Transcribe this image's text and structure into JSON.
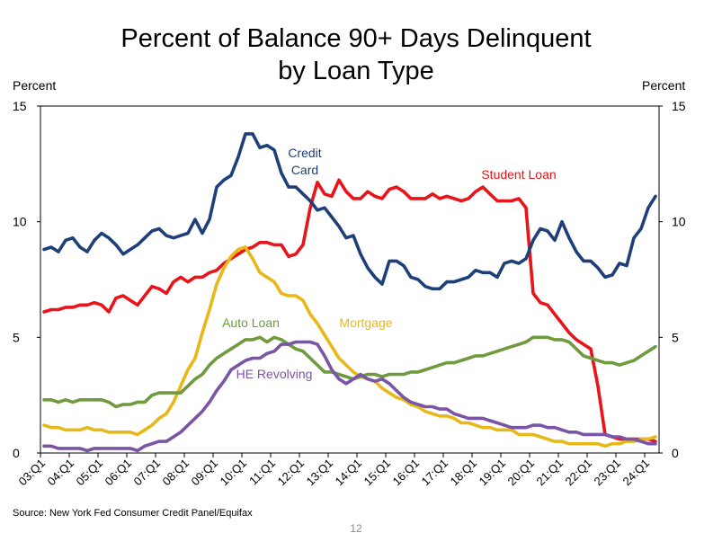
{
  "title_line1": "Percent of Balance 90+ Days Delinquent",
  "title_line2": "by Loan Type",
  "left_unit": "Percent",
  "right_unit": "Percent",
  "source": "Source: New York Fed Consumer Credit Panel/Equifax",
  "page_number": "12",
  "chart_data": {
    "type": "line",
    "title": "Percent of Balance 90+ Days Delinquent by Loan Type",
    "xlabel": "",
    "ylabel": "Percent",
    "ylim": [
      0,
      15
    ],
    "yticks": [
      0,
      5,
      10,
      15
    ],
    "grid": false,
    "x_start": "2003Q1",
    "x_end": "2024Q2",
    "x_count": 86,
    "xtick_labels": [
      "03:Q1",
      "04:Q1",
      "05:Q1",
      "06:Q1",
      "07:Q1",
      "08:Q1",
      "09:Q1",
      "10:Q1",
      "11:Q1",
      "12:Q1",
      "13:Q1",
      "14:Q1",
      "15:Q1",
      "16:Q1",
      "17:Q1",
      "18:Q1",
      "19:Q1",
      "20:Q1",
      "21:Q1",
      "22:Q1",
      "23:Q1",
      "24:Q1"
    ],
    "series": [
      {
        "name": "Credit Card",
        "label_lines": [
          "Credit",
          "Card"
        ],
        "color": "#1f3f7a",
        "values": [
          8.8,
          8.9,
          8.7,
          9.2,
          9.3,
          8.9,
          8.7,
          9.2,
          9.5,
          9.3,
          9.0,
          8.6,
          8.8,
          9.0,
          9.3,
          9.6,
          9.7,
          9.4,
          9.3,
          9.4,
          9.5,
          10.1,
          9.5,
          10.1,
          11.5,
          11.8,
          12.0,
          12.8,
          13.8,
          13.8,
          13.2,
          13.3,
          13.1,
          12.1,
          11.5,
          11.5,
          11.2,
          10.9,
          10.5,
          10.6,
          10.2,
          9.8,
          9.3,
          9.4,
          8.6,
          8.0,
          7.6,
          7.3,
          8.3,
          8.3,
          8.1,
          7.6,
          7.5,
          7.2,
          7.1,
          7.1,
          7.4,
          7.4,
          7.5,
          7.6,
          7.9,
          7.8,
          7.8,
          7.6,
          8.2,
          8.3,
          8.2,
          8.4,
          9.2,
          9.7,
          9.6,
          9.2,
          10.0,
          9.3,
          8.7,
          8.3,
          8.3,
          8.0,
          7.6,
          7.7,
          8.2,
          8.1,
          9.3,
          9.7,
          10.6,
          11.1
        ]
      },
      {
        "name": "Student Loan",
        "label_lines": [
          "Student Loan"
        ],
        "color": "#e8141a",
        "values": [
          6.1,
          6.2,
          6.2,
          6.3,
          6.3,
          6.4,
          6.4,
          6.5,
          6.4,
          6.1,
          6.7,
          6.8,
          6.6,
          6.4,
          6.8,
          7.2,
          7.1,
          6.9,
          7.4,
          7.6,
          7.4,
          7.6,
          7.6,
          7.8,
          7.9,
          8.2,
          8.4,
          8.6,
          8.8,
          8.9,
          9.1,
          9.1,
          9.0,
          9.0,
          8.5,
          8.6,
          9.0,
          10.6,
          11.7,
          11.2,
          11.1,
          11.8,
          11.3,
          11.0,
          11.0,
          11.3,
          11.1,
          11.0,
          11.4,
          11.5,
          11.3,
          11.0,
          11.0,
          11.0,
          11.2,
          11.0,
          11.1,
          11.0,
          10.9,
          11.0,
          11.3,
          11.5,
          11.2,
          10.9,
          10.9,
          10.9,
          11.0,
          10.6,
          6.9,
          6.5,
          6.4,
          6.0,
          5.6,
          5.2,
          4.9,
          4.7,
          4.5,
          2.9,
          0.8,
          0.7,
          0.6,
          0.6,
          0.6,
          0.6,
          0.6,
          0.5
        ]
      },
      {
        "name": "Mortgage",
        "label_lines": [
          "Mortgage"
        ],
        "color": "#e8b818",
        "values": [
          1.2,
          1.1,
          1.1,
          1.0,
          1.0,
          1.0,
          1.1,
          1.0,
          1.0,
          0.9,
          0.9,
          0.9,
          0.9,
          0.8,
          1.0,
          1.2,
          1.5,
          1.7,
          2.2,
          2.9,
          3.6,
          4.1,
          5.2,
          6.2,
          7.3,
          8.0,
          8.5,
          8.8,
          8.9,
          8.4,
          7.8,
          7.6,
          7.4,
          6.9,
          6.8,
          6.8,
          6.6,
          6.0,
          5.6,
          5.1,
          4.6,
          4.1,
          3.8,
          3.5,
          3.3,
          3.2,
          3.1,
          2.8,
          2.6,
          2.4,
          2.3,
          2.1,
          2.0,
          1.8,
          1.7,
          1.6,
          1.6,
          1.5,
          1.3,
          1.3,
          1.2,
          1.1,
          1.1,
          1.0,
          1.0,
          1.0,
          0.8,
          0.8,
          0.8,
          0.7,
          0.6,
          0.5,
          0.5,
          0.4,
          0.4,
          0.4,
          0.4,
          0.4,
          0.3,
          0.4,
          0.4,
          0.5,
          0.5,
          0.6,
          0.6,
          0.7
        ]
      },
      {
        "name": "Auto Loan",
        "label_lines": [
          "Auto Loan"
        ],
        "color": "#6f9a3e",
        "values": [
          2.3,
          2.3,
          2.2,
          2.3,
          2.2,
          2.3,
          2.3,
          2.3,
          2.3,
          2.2,
          2.0,
          2.1,
          2.1,
          2.2,
          2.2,
          2.5,
          2.6,
          2.6,
          2.6,
          2.6,
          2.9,
          3.2,
          3.4,
          3.8,
          4.1,
          4.3,
          4.5,
          4.7,
          4.9,
          4.9,
          5.0,
          4.8,
          5.0,
          4.9,
          4.7,
          4.5,
          4.4,
          4.1,
          3.8,
          3.5,
          3.5,
          3.4,
          3.3,
          3.2,
          3.3,
          3.4,
          3.4,
          3.3,
          3.4,
          3.4,
          3.4,
          3.5,
          3.5,
          3.6,
          3.7,
          3.8,
          3.9,
          3.9,
          4.0,
          4.1,
          4.2,
          4.2,
          4.3,
          4.4,
          4.5,
          4.6,
          4.7,
          4.8,
          5.0,
          5.0,
          5.0,
          4.9,
          4.9,
          4.8,
          4.5,
          4.2,
          4.1,
          4.0,
          3.9,
          3.9,
          3.8,
          3.9,
          4.0,
          4.2,
          4.4,
          4.6
        ]
      },
      {
        "name": "HE Revolving",
        "label_lines": [
          "HE Revolving"
        ],
        "color": "#7a55a5",
        "values": [
          0.3,
          0.3,
          0.2,
          0.2,
          0.2,
          0.2,
          0.1,
          0.2,
          0.2,
          0.2,
          0.2,
          0.2,
          0.2,
          0.1,
          0.3,
          0.4,
          0.5,
          0.5,
          0.7,
          0.9,
          1.2,
          1.5,
          1.8,
          2.2,
          2.7,
          3.1,
          3.6,
          3.8,
          4.0,
          4.1,
          4.1,
          4.3,
          4.4,
          4.7,
          4.7,
          4.8,
          4.8,
          4.8,
          4.7,
          4.2,
          3.6,
          3.2,
          3.0,
          3.2,
          3.4,
          3.2,
          3.1,
          3.2,
          3.0,
          2.7,
          2.4,
          2.2,
          2.1,
          2.0,
          2.0,
          1.9,
          1.9,
          1.7,
          1.6,
          1.5,
          1.5,
          1.5,
          1.4,
          1.3,
          1.2,
          1.1,
          1.1,
          1.1,
          1.2,
          1.2,
          1.1,
          1.1,
          1.0,
          0.9,
          0.9,
          0.8,
          0.8,
          0.8,
          0.8,
          0.7,
          0.7,
          0.6,
          0.6,
          0.5,
          0.4,
          0.4
        ]
      }
    ]
  }
}
